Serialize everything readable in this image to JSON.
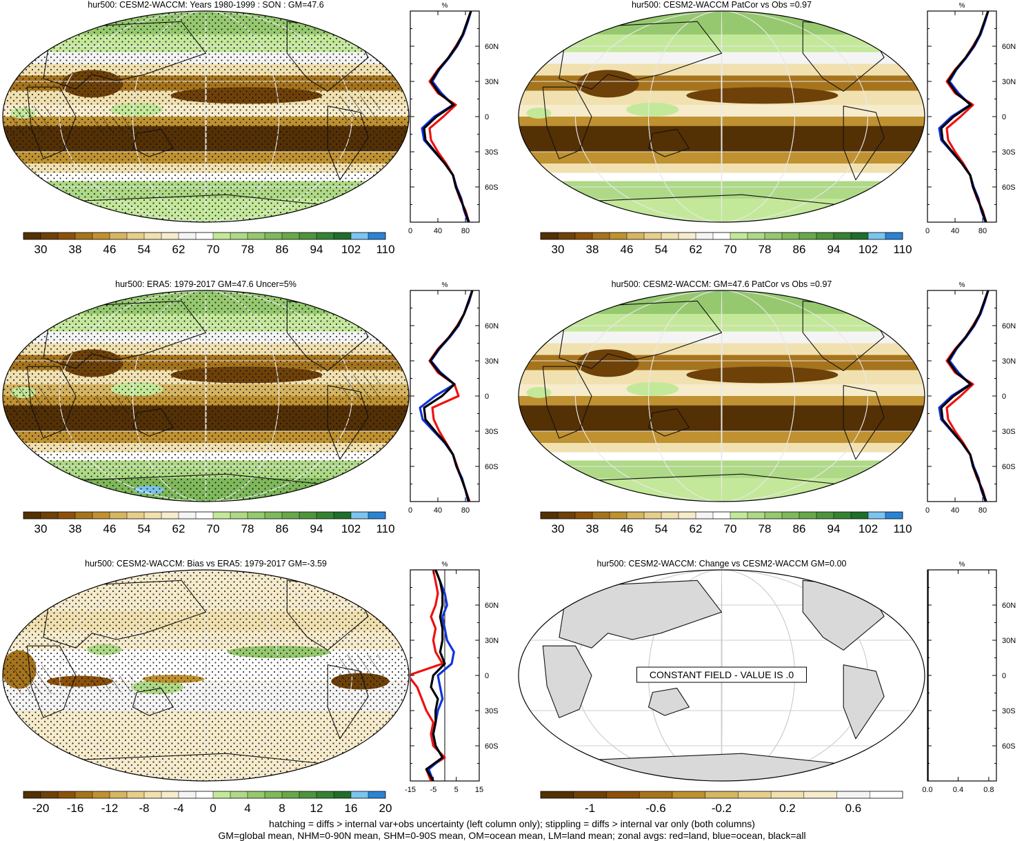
{
  "panels": [
    {
      "id": "p1",
      "title": "hur500: CESM2-WACCM: Years 1980-1999 : SON : GM=47.6",
      "field": "model",
      "hatch": true,
      "stipple": true,
      "colorbar": "abs",
      "zonal": {
        "xlim": [
          0,
          100
        ],
        "xticks": [
          "0",
          "40",
          "80"
        ],
        "unit": "%",
        "zero_line": false
      },
      "constant_label": ""
    },
    {
      "id": "p2",
      "title": "hur500: CESM2-WACCM PatCor vs Obs =0.97",
      "field": "model",
      "hatch": false,
      "stipple": false,
      "colorbar": "abs",
      "zonal": {
        "xlim": [
          0,
          100
        ],
        "xticks": [
          "0",
          "40",
          "80"
        ],
        "unit": "%",
        "zero_line": false
      },
      "constant_label": ""
    },
    {
      "id": "p3",
      "title": "hur500: ERA5: 1979-2017 GM=47.6 Uncer=5%",
      "field": "obs",
      "hatch": true,
      "stipple": true,
      "colorbar": "abs",
      "zonal": {
        "xlim": [
          0,
          100
        ],
        "xticks": [
          "0",
          "40",
          "80"
        ],
        "unit": "%",
        "zero_line": false
      },
      "constant_label": ""
    },
    {
      "id": "p4",
      "title": "hur500: CESM2-WACCM: GM=47.6 PatCor vs Obs =0.97",
      "field": "model",
      "hatch": false,
      "stipple": false,
      "colorbar": "abs",
      "zonal": {
        "xlim": [
          0,
          100
        ],
        "xticks": [
          "0",
          "40",
          "80"
        ],
        "unit": "%",
        "zero_line": false
      },
      "constant_label": ""
    },
    {
      "id": "p5",
      "title": "hur500: CESM2-WACCM: Bias vs ERA5: 1979-2017  GM=-3.59",
      "field": "bias",
      "hatch": true,
      "stipple": true,
      "colorbar": "diff",
      "zonal": {
        "xlim": [
          -15,
          15
        ],
        "xticks": [
          "-15",
          "-5",
          "5",
          "15"
        ],
        "unit": "%",
        "zero_line": true
      },
      "constant_label": ""
    },
    {
      "id": "p6",
      "title": "hur500: CESM2-WACCM: Change vs CESM2-WACCM GM=0.00",
      "field": "const",
      "hatch": false,
      "stipple": false,
      "colorbar": "chg",
      "zonal": {
        "xlim": [
          0,
          0.9
        ],
        "xticks": [
          "0.0",
          "0.4",
          "0.8"
        ],
        "unit": "%",
        "zero_line": false
      },
      "constant_label": "CONSTANT FIELD - VALUE IS .0"
    }
  ],
  "lat_tick_labels": [
    "60N",
    "30N",
    "0",
    "30S",
    "60S"
  ],
  "colorbars": {
    "abs": {
      "colors": [
        "#543005",
        "#6e4109",
        "#8c510a",
        "#a6741d",
        "#bf9130",
        "#d6b563",
        "#e6cf8c",
        "#f1e1b0",
        "#f6ebcb",
        "#f4f4f4",
        "#ffffff",
        "#c4e89a",
        "#aed987",
        "#96c96f",
        "#7fb95b",
        "#68a84b",
        "#4f943c",
        "#358332",
        "#1f6e2b",
        "#7cc3ef",
        "#2b83d3"
      ],
      "labels": [
        "30",
        "38",
        "46",
        "54",
        "62",
        "70",
        "78",
        "86",
        "94",
        "102",
        "110"
      ]
    },
    "diff": {
      "colors": [
        "#543005",
        "#6e4109",
        "#8c510a",
        "#a6741d",
        "#bf9130",
        "#d6b563",
        "#e6cf8c",
        "#f1e1b0",
        "#f6ebcb",
        "#f4f4f4",
        "#ffffff",
        "#c4e89a",
        "#aed987",
        "#96c96f",
        "#7fb95b",
        "#68a84b",
        "#4f943c",
        "#358332",
        "#1f6e2b",
        "#7cc3ef",
        "#2b83d3"
      ],
      "labels": [
        "-20",
        "-16",
        "-12",
        "-8",
        "-4",
        "0",
        "4",
        "8",
        "12",
        "16",
        "20"
      ]
    },
    "chg": {
      "colors": [
        "#543005",
        "#6e4109",
        "#8c510a",
        "#a6741d",
        "#bf9130",
        "#d6b563",
        "#e6cf8c",
        "#f1e1b0",
        "#f6ebcb",
        "#f4f4f4",
        "#ffffff"
      ],
      "labels": [
        "-1",
        "-0.6",
        "-0.2",
        "0.2",
        "0.6"
      ]
    }
  },
  "chart_data": [
    {
      "type": "line",
      "title": "hur500: CESM2-WACCM: Years 1980-1999 : SON : GM=47.6",
      "xlabel": "%",
      "xlim": [
        0,
        100
      ],
      "ylim": [
        -90,
        90
      ],
      "y": [
        -90,
        -80,
        -70,
        -60,
        -50,
        -40,
        -30,
        -20,
        -10,
        0,
        10,
        20,
        30,
        40,
        50,
        60,
        70,
        80,
        90
      ],
      "series": [
        {
          "name": "red",
          "color": "#ee1111",
          "values": [
            85,
            80,
            72,
            66,
            62,
            52,
            40,
            30,
            28,
            48,
            66,
            40,
            28,
            40,
            55,
            66,
            76,
            82,
            88
          ]
        },
        {
          "name": "blue",
          "color": "#1133dd",
          "values": [
            84,
            78,
            74,
            67,
            62,
            50,
            35,
            20,
            17,
            35,
            62,
            45,
            32,
            42,
            56,
            68,
            77,
            83,
            88
          ]
        },
        {
          "name": "black",
          "color": "#000000",
          "values": [
            85,
            79,
            73,
            66,
            62,
            50,
            36,
            22,
            20,
            38,
            63,
            42,
            30,
            41,
            55,
            67,
            76,
            82,
            88
          ]
        }
      ]
    },
    {
      "type": "line",
      "title": "hur500: CESM2-WACCM PatCor vs Obs =0.97",
      "xlabel": "%",
      "xlim": [
        0,
        100
      ],
      "ylim": [
        -90,
        90
      ],
      "y": [
        -90,
        -80,
        -70,
        -60,
        -50,
        -40,
        -30,
        -20,
        -10,
        0,
        10,
        20,
        30,
        40,
        50,
        60,
        70,
        80,
        90
      ],
      "series": [
        {
          "name": "red",
          "color": "#ee1111",
          "values": [
            85,
            80,
            72,
            66,
            62,
            52,
            40,
            30,
            28,
            48,
            66,
            40,
            28,
            40,
            55,
            66,
            76,
            82,
            88
          ]
        },
        {
          "name": "blue",
          "color": "#1133dd",
          "values": [
            84,
            78,
            74,
            67,
            62,
            50,
            35,
            20,
            17,
            35,
            62,
            45,
            32,
            42,
            56,
            68,
            77,
            83,
            88
          ]
        },
        {
          "name": "black",
          "color": "#000000",
          "values": [
            85,
            79,
            73,
            66,
            62,
            50,
            36,
            22,
            20,
            38,
            63,
            42,
            30,
            41,
            55,
            67,
            76,
            82,
            88
          ]
        }
      ]
    },
    {
      "type": "line",
      "title": "hur500: ERA5: 1979-2017 GM=47.6 Uncer=5%",
      "xlabel": "%",
      "xlim": [
        0,
        100
      ],
      "ylim": [
        -90,
        90
      ],
      "y": [
        -90,
        -80,
        -70,
        -60,
        -50,
        -40,
        -30,
        -20,
        -10,
        0,
        10,
        20,
        30,
        40,
        50,
        60,
        70,
        80,
        90
      ],
      "series": [
        {
          "name": "red",
          "color": "#ee1111",
          "values": [
            86,
            80,
            74,
            68,
            62,
            52,
            42,
            34,
            32,
            70,
            64,
            40,
            28,
            40,
            56,
            68,
            78,
            84,
            90
          ]
        },
        {
          "name": "blue",
          "color": "#1133dd",
          "values": [
            84,
            80,
            75,
            67,
            62,
            50,
            34,
            18,
            14,
            36,
            64,
            44,
            30,
            42,
            57,
            70,
            78,
            85,
            90
          ]
        },
        {
          "name": "black",
          "color": "#000000",
          "values": [
            85,
            80,
            74,
            67,
            62,
            51,
            36,
            22,
            20,
            46,
            64,
            42,
            29,
            41,
            56,
            69,
            78,
            84,
            90
          ]
        }
      ]
    },
    {
      "type": "line",
      "title": "hur500: CESM2-WACCM: GM=47.6 PatCor vs Obs =0.97",
      "xlabel": "%",
      "xlim": [
        0,
        100
      ],
      "ylim": [
        -90,
        90
      ],
      "y": [
        -90,
        -80,
        -70,
        -60,
        -50,
        -40,
        -30,
        -20,
        -10,
        0,
        10,
        20,
        30,
        40,
        50,
        60,
        70,
        80,
        90
      ],
      "series": [
        {
          "name": "red",
          "color": "#ee1111",
          "values": [
            85,
            80,
            72,
            66,
            62,
            52,
            40,
            30,
            28,
            48,
            66,
            40,
            28,
            40,
            55,
            66,
            76,
            82,
            88
          ]
        },
        {
          "name": "blue",
          "color": "#1133dd",
          "values": [
            84,
            78,
            74,
            67,
            62,
            50,
            35,
            20,
            17,
            35,
            62,
            45,
            32,
            42,
            56,
            68,
            77,
            83,
            88
          ]
        },
        {
          "name": "black",
          "color": "#000000",
          "values": [
            85,
            79,
            73,
            66,
            62,
            50,
            36,
            22,
            20,
            38,
            63,
            42,
            30,
            41,
            55,
            67,
            76,
            82,
            88
          ]
        }
      ]
    },
    {
      "type": "line",
      "title": "hur500: CESM2-WACCM: Bias vs ERA5: 1979-2017  GM=-3.59",
      "xlabel": "%",
      "xlim": [
        -15,
        15
      ],
      "ylim": [
        -90,
        90
      ],
      "y": [
        -90,
        -80,
        -70,
        -60,
        -50,
        -40,
        -30,
        -20,
        -10,
        0,
        10,
        20,
        30,
        40,
        50,
        60,
        70,
        80,
        90
      ],
      "series": [
        {
          "name": "red",
          "color": "#ee1111",
          "values": [
            -6,
            -8,
            0,
            -5,
            -6,
            -5,
            -8,
            -10,
            -12,
            -16,
            -1,
            -4,
            -5,
            -4,
            -6,
            -4,
            -3,
            -4,
            -5
          ]
        },
        {
          "name": "blue",
          "color": "#1133dd",
          "values": [
            -5,
            -7,
            -1,
            -4,
            -5,
            -4,
            -3,
            -1,
            -2,
            -3,
            3,
            4,
            1,
            0,
            -1,
            1,
            0,
            -2,
            -4
          ]
        },
        {
          "name": "black",
          "color": "#000000",
          "values": [
            -5,
            -8,
            -1,
            -4,
            -5,
            -4,
            -4,
            -3,
            -6,
            -5,
            0,
            -2,
            -1,
            -1,
            -2,
            -1,
            -1,
            -2,
            -4
          ]
        }
      ]
    },
    {
      "type": "line",
      "title": "hur500: CESM2-WACCM: Change vs CESM2-WACCM GM=0.00",
      "xlabel": "%",
      "xlim": [
        0,
        0.9
      ],
      "ylim": [
        -90,
        90
      ],
      "y": [
        -90,
        -60,
        -30,
        0,
        30,
        60,
        90
      ],
      "series": [
        {
          "name": "red",
          "color": "#ee1111",
          "values": [
            0,
            0,
            0,
            0,
            0,
            0,
            0
          ]
        },
        {
          "name": "blue",
          "color": "#1133dd",
          "values": [
            0,
            0,
            0,
            0,
            0,
            0,
            0
          ]
        },
        {
          "name": "black",
          "color": "#000000",
          "values": [
            0,
            0,
            0,
            0,
            0,
            0,
            0
          ]
        }
      ]
    }
  ],
  "footer": {
    "line1": "hatching = diffs > internal var+obs uncertainty (left column only); stippling = diffs > internal var only (both columns)",
    "line2": "GM=global mean, NHM=0-90N mean, SHM=0-90S mean, OM=ocean mean, LM=land mean; zonal avgs: red=land, blue=ocean, black=all"
  }
}
